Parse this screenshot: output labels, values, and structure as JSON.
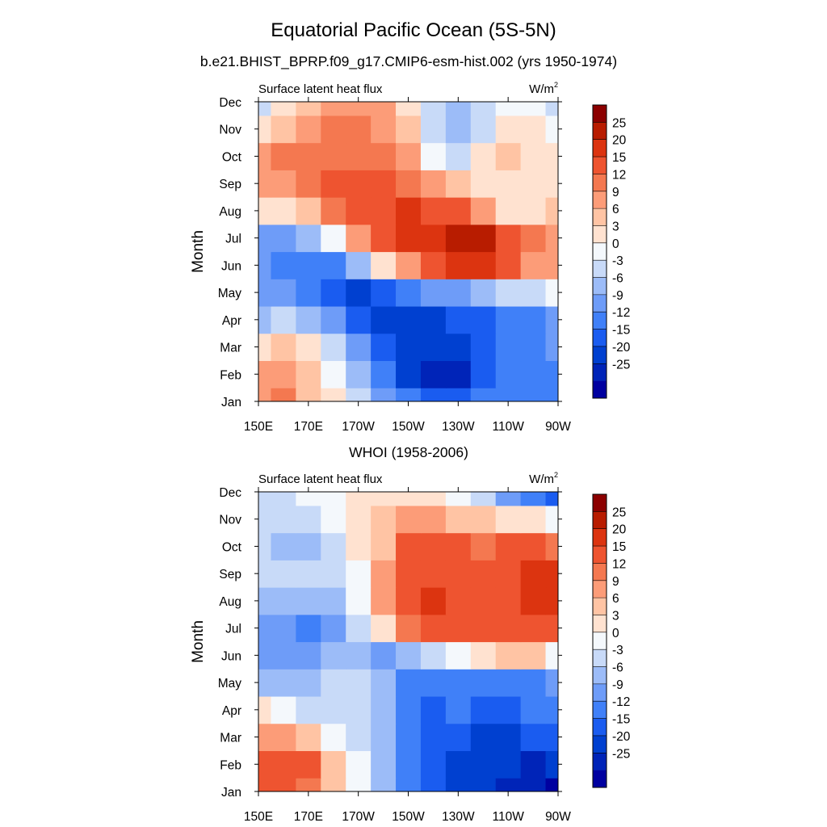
{
  "figure": {
    "title": "Equatorial Pacific Ocean (5S-5N)",
    "subtitle": "b.e21.BHIST_BPRP.f09_g17.CMIP6-esm-hist.002 (yrs 1950-1974)"
  },
  "colorbar": {
    "colors": [
      "#0000a0",
      "#0024b8",
      "#0040d0",
      "#1a5cf0",
      "#4080f8",
      "#6e9cf8",
      "#9cbcf8",
      "#c8daf8",
      "#f4f8fc",
      "#ffe2d0",
      "#ffc4a4",
      "#fc9c78",
      "#f47850",
      "#ee5430",
      "#dc3410",
      "#b81c00",
      "#8c0000"
    ],
    "labels": [
      "-25",
      "-20",
      "-15",
      "-12",
      "-9",
      "-6",
      "-3",
      "0",
      "3",
      "6",
      "9",
      "12",
      "15",
      "20",
      "25"
    ]
  },
  "chart_data": [
    {
      "type": "heatmap",
      "title": "",
      "left_string": "Surface latent heat flux",
      "units_text": "W/m",
      "units_sup": "2",
      "ylabel": "Month",
      "xlabel": "",
      "x_ticks": [
        "150E",
        "170E",
        "170W",
        "150W",
        "130W",
        "110W",
        "90W"
      ],
      "y_ticks": [
        "Jan",
        "Feb",
        "Mar",
        "Apr",
        "May",
        "Jun",
        "Jul",
        "Aug",
        "Sep",
        "Oct",
        "Nov",
        "Dec"
      ],
      "x": [
        "150E",
        "160E",
        "170E",
        "180",
        "170W",
        "160W",
        "150W",
        "140W",
        "130W",
        "120W",
        "110W",
        "100W",
        "90W"
      ],
      "y": [
        "Jan",
        "Feb",
        "Mar",
        "Apr",
        "May",
        "Jun",
        "Jul",
        "Aug",
        "Sep",
        "Oct",
        "Nov",
        "Dec"
      ],
      "z": [
        [
          9,
          12,
          8,
          3,
          -3,
          -9,
          -12,
          -15,
          -15,
          -12,
          -12,
          -12,
          -12
        ],
        [
          9,
          9,
          6,
          0,
          -6,
          -12,
          -18,
          -22,
          -22,
          -15,
          -12,
          -12,
          -12
        ],
        [
          3,
          6,
          3,
          -3,
          -9,
          -15,
          -20,
          -20,
          -18,
          -15,
          -12,
          -12,
          -9
        ],
        [
          -6,
          -3,
          -6,
          -9,
          -15,
          -18,
          -20,
          -18,
          -15,
          -15,
          -12,
          -12,
          -9
        ],
        [
          -9,
          -9,
          -12,
          -15,
          -18,
          -15,
          -12,
          -9,
          -9,
          -6,
          -3,
          -3,
          0
        ],
        [
          -9,
          -12,
          -12,
          -12,
          -6,
          3,
          9,
          15,
          20,
          20,
          15,
          9,
          9
        ],
        [
          -9,
          -9,
          -6,
          0,
          9,
          15,
          20,
          22,
          26,
          26,
          15,
          12,
          9
        ],
        [
          3,
          3,
          6,
          12,
          15,
          18,
          20,
          18,
          15,
          9,
          3,
          3,
          6
        ],
        [
          9,
          9,
          12,
          15,
          15,
          15,
          12,
          9,
          6,
          3,
          3,
          3,
          3
        ],
        [
          9,
          12,
          12,
          12,
          12,
          12,
          9,
          0,
          -3,
          3,
          6,
          3,
          3
        ],
        [
          3,
          6,
          9,
          12,
          12,
          9,
          6,
          -3,
          -6,
          -3,
          3,
          3,
          0
        ],
        [
          -3,
          3,
          6,
          9,
          9,
          9,
          3,
          -3,
          -6,
          -3,
          0,
          0,
          -3
        ]
      ],
      "levels": [
        -25,
        -20,
        -15,
        -12,
        -9,
        -6,
        -3,
        0,
        3,
        6,
        9,
        12,
        15,
        20,
        25
      ],
      "colorbar_range": [
        -30,
        30
      ]
    },
    {
      "type": "heatmap",
      "title": "WHOI (1958-2006)",
      "left_string": "Surface latent heat flux",
      "units_text": "W/m",
      "units_sup": "2",
      "ylabel": "Month",
      "xlabel": "",
      "x_ticks": [
        "150E",
        "170E",
        "170W",
        "150W",
        "130W",
        "110W",
        "90W"
      ],
      "y_ticks": [
        "Jan",
        "Feb",
        "Mar",
        "Apr",
        "May",
        "Jun",
        "Jul",
        "Aug",
        "Sep",
        "Oct",
        "Nov",
        "Dec"
      ],
      "x": [
        "150E",
        "160E",
        "170E",
        "180",
        "170W",
        "160W",
        "150W",
        "140W",
        "130W",
        "120W",
        "110W",
        "100W",
        "90W"
      ],
      "y": [
        "Jan",
        "Feb",
        "Mar",
        "Apr",
        "May",
        "Jun",
        "Jul",
        "Aug",
        "Sep",
        "Oct",
        "Nov",
        "Dec"
      ],
      "z": [
        [
          15,
          15,
          12,
          6,
          0,
          -6,
          -12,
          -15,
          -18,
          -20,
          -22,
          -25,
          -26
        ],
        [
          15,
          18,
          15,
          6,
          0,
          -6,
          -12,
          -15,
          -18,
          -20,
          -20,
          -22,
          -20
        ],
        [
          9,
          9,
          6,
          0,
          -3,
          -6,
          -12,
          -15,
          -15,
          -18,
          -18,
          -15,
          -15
        ],
        [
          3,
          0,
          -3,
          -3,
          -3,
          -6,
          -12,
          -15,
          -12,
          -15,
          -15,
          -12,
          -12
        ],
        [
          -6,
          -6,
          -6,
          -3,
          -3,
          -6,
          -12,
          -12,
          -12,
          -12,
          -12,
          -12,
          -9
        ],
        [
          -9,
          -9,
          -9,
          -6,
          -6,
          -9,
          -6,
          -3,
          0,
          3,
          6,
          6,
          0
        ],
        [
          -9,
          -9,
          -12,
          -9,
          -3,
          3,
          12,
          15,
          15,
          15,
          18,
          18,
          15
        ],
        [
          -6,
          -6,
          -6,
          -6,
          0,
          9,
          18,
          20,
          18,
          15,
          18,
          20,
          20
        ],
        [
          -3,
          -3,
          -3,
          -3,
          0,
          9,
          15,
          18,
          15,
          15,
          18,
          22,
          22
        ],
        [
          -3,
          -6,
          -6,
          -3,
          3,
          6,
          15,
          15,
          15,
          12,
          15,
          15,
          12
        ],
        [
          -3,
          -3,
          -3,
          0,
          3,
          6,
          9,
          9,
          6,
          6,
          3,
          3,
          0
        ],
        [
          -3,
          -3,
          0,
          0,
          3,
          3,
          3,
          3,
          0,
          -3,
          -9,
          -12,
          -15
        ]
      ],
      "levels": [
        -25,
        -20,
        -15,
        -12,
        -9,
        -6,
        -3,
        0,
        3,
        6,
        9,
        12,
        15,
        20,
        25
      ],
      "colorbar_range": [
        -30,
        30
      ]
    }
  ]
}
